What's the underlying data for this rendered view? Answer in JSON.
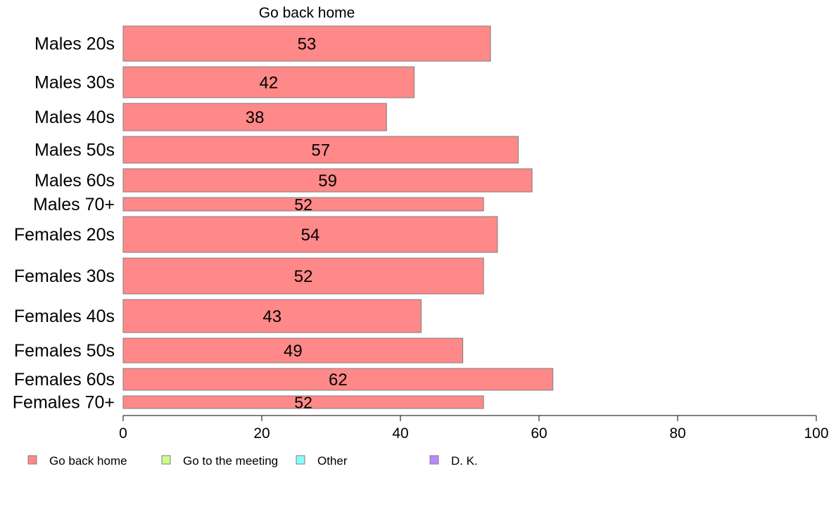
{
  "chart_data": {
    "type": "bar",
    "orientation": "horizontal",
    "stacked": true,
    "title": "",
    "xlabel": "",
    "ylabel": "",
    "xlim": [
      0,
      100
    ],
    "x_ticks": [
      0,
      20,
      40,
      60,
      80,
      100
    ],
    "grid": false,
    "legend_position": "bottom-left",
    "categories": [
      "Males 20s",
      "Males 30s",
      "Males 40s",
      "Males 50s",
      "Males 60s",
      "Males 70+",
      "Females 20s",
      "Females 30s",
      "Females 40s",
      "Females 50s",
      "Females 60s",
      "Females 70+"
    ],
    "series": [
      {
        "name": "Go back home",
        "color": "#ff8888",
        "values": [
          53,
          42,
          38,
          57,
          59,
          52,
          54,
          52,
          43,
          49,
          62,
          52
        ]
      }
    ],
    "column_headers": [
      "Go back home"
    ],
    "legend": [
      {
        "label": "Go back home",
        "color": "#ff8888"
      },
      {
        "label": "Go to the meeting",
        "color": "#ccff88"
      },
      {
        "label": "Other",
        "color": "#88ffff"
      },
      {
        "label": "D. K.",
        "color": "#bb88ff"
      }
    ]
  }
}
